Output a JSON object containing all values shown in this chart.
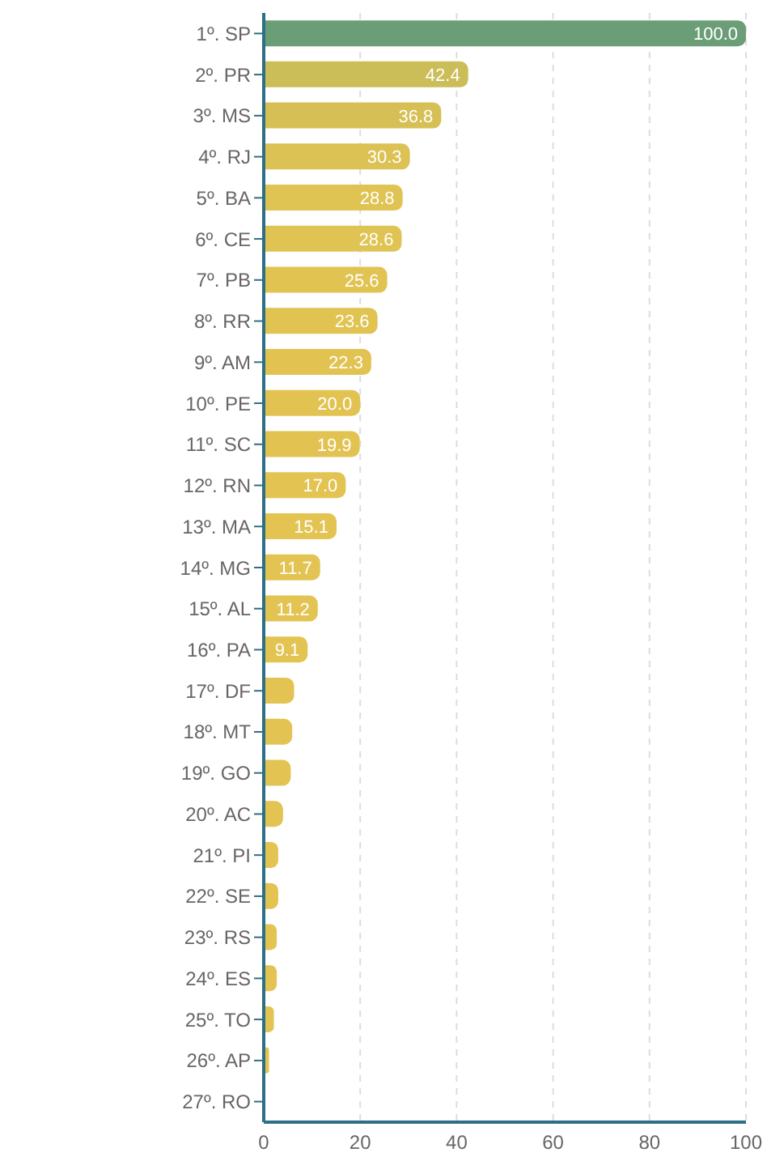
{
  "chart_data": {
    "type": "bar",
    "orientation": "horizontal",
    "categories": [
      "1º. SP",
      "2º. PR",
      "3º. MS",
      "4º. RJ",
      "5º. BA",
      "6º. CE",
      "7º. PB",
      "8º. RR",
      "9º. AM",
      "10º. PE",
      "11º. SC",
      "12º. RN",
      "13º. MA",
      "14º. MG",
      "15º. AL",
      "16º. PA",
      "17º. DF",
      "18º. MT",
      "19º. GO",
      "20º. AC",
      "21º. PI",
      "22º. SE",
      "23º. RS",
      "24º. ES",
      "25º. TO",
      "26º. AP",
      "27º. RO"
    ],
    "values": [
      100.0,
      42.4,
      36.8,
      30.3,
      28.8,
      28.6,
      25.6,
      23.6,
      22.3,
      20.0,
      19.9,
      17.0,
      15.1,
      11.7,
      11.2,
      9.1,
      6.3,
      5.9,
      5.6,
      4.0,
      3.0,
      3.0,
      2.7,
      2.7,
      2.1,
      1.1,
      0
    ],
    "value_labels": [
      "100.0",
      "42.4",
      "36.8",
      "30.3",
      "28.8",
      "28.6",
      "25.6",
      "23.6",
      "22.3",
      "20.0",
      "19.9",
      "17.0",
      "15.1",
      "11.7",
      "11.2",
      "9.1",
      null,
      null,
      null,
      null,
      null,
      null,
      null,
      null,
      null,
      null,
      null
    ],
    "colors": [
      "#6b9e77",
      "#cbbd58",
      "#d6c055",
      "#dcc254",
      "#dfc353",
      "#dfc353",
      "#e1c352",
      "#e1c352",
      "#e2c352",
      "#e2c352",
      "#e2c352",
      "#e3c352",
      "#e3c352",
      "#e3c352",
      "#e3c352",
      "#e3c352",
      "#e3c352",
      "#e3c352",
      "#e3c352",
      "#e3c352",
      "#e3c352",
      "#e3c352",
      "#e3c352",
      "#e3c352",
      "#e3c352",
      "#e3c352",
      "#e3c352"
    ],
    "xlim": [
      0,
      100
    ],
    "xticks": [
      0,
      20,
      40,
      60,
      80,
      100
    ],
    "grid": "x"
  }
}
